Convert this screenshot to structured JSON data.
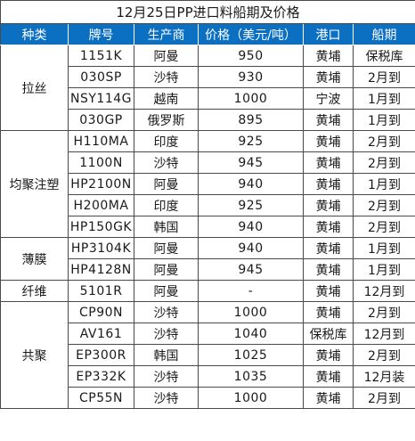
{
  "title": "12月25日PP进口料船期及价格",
  "headers": [
    "种类",
    "牌号",
    "生产商",
    "价格（美元/吨）",
    "港口",
    "船期"
  ],
  "groups": [
    {
      "category": "拉丝",
      "rows": [
        {
          "grade": "1151K",
          "producer": "阿曼",
          "price": "950",
          "port": "黄埔",
          "shipment": "保税库"
        },
        {
          "grade": "030SP",
          "producer": "沙特",
          "price": "930",
          "port": "黄埔",
          "shipment": "2月到"
        },
        {
          "grade": "NSY114G",
          "producer": "越南",
          "price": "1000",
          "port": "宁波",
          "shipment": "1月到"
        },
        {
          "grade": "030GP",
          "producer": "俄罗斯",
          "price": "895",
          "port": "黄埔",
          "shipment": "1月到"
        }
      ]
    },
    {
      "category": "均聚注塑",
      "rows": [
        {
          "grade": "H110MA",
          "producer": "印度",
          "price": "925",
          "port": "黄埔",
          "shipment": "2月到"
        },
        {
          "grade": "1100N",
          "producer": "沙特",
          "price": "945",
          "port": "黄埔",
          "shipment": "2月到"
        },
        {
          "grade": "HP2100N",
          "producer": "阿曼",
          "price": "940",
          "port": "黄埔",
          "shipment": "1月到"
        },
        {
          "grade": "H200MA",
          "producer": "印度",
          "price": "925",
          "port": "黄埔",
          "shipment": "2月到"
        },
        {
          "grade": "HP150GK",
          "producer": "韩国",
          "price": "940",
          "port": "黄埔",
          "shipment": "2月到"
        }
      ]
    },
    {
      "category": "薄膜",
      "rows": [
        {
          "grade": "HP3104K",
          "producer": "阿曼",
          "price": "940",
          "port": "黄埔",
          "shipment": "1月到"
        },
        {
          "grade": "HP4128N",
          "producer": "阿曼",
          "price": "945",
          "port": "黄埔",
          "shipment": "1月到"
        }
      ]
    },
    {
      "category": "纤维",
      "rows": [
        {
          "grade": "5101R",
          "producer": "阿曼",
          "price": "-",
          "port": "黄埔",
          "shipment": "12月到"
        }
      ]
    },
    {
      "category": "共聚",
      "rows": [
        {
          "grade": "CP90N",
          "producer": "沙特",
          "price": "1000",
          "port": "黄埔",
          "shipment": "2月到"
        },
        {
          "grade": "AV161",
          "producer": "沙特",
          "price": "1040",
          "port": "保税库",
          "shipment": "12月到"
        },
        {
          "grade": "EP300R",
          "producer": "韩国",
          "price": "1025",
          "port": "黄埔",
          "shipment": "2月到"
        },
        {
          "grade": "EP332K",
          "producer": "沙特",
          "price": "1035",
          "port": "黄埔",
          "shipment": "12月装"
        },
        {
          "grade": "CP55N",
          "producer": "沙特",
          "price": "1000",
          "port": "黄埔",
          "shipment": "2月到"
        }
      ]
    }
  ]
}
